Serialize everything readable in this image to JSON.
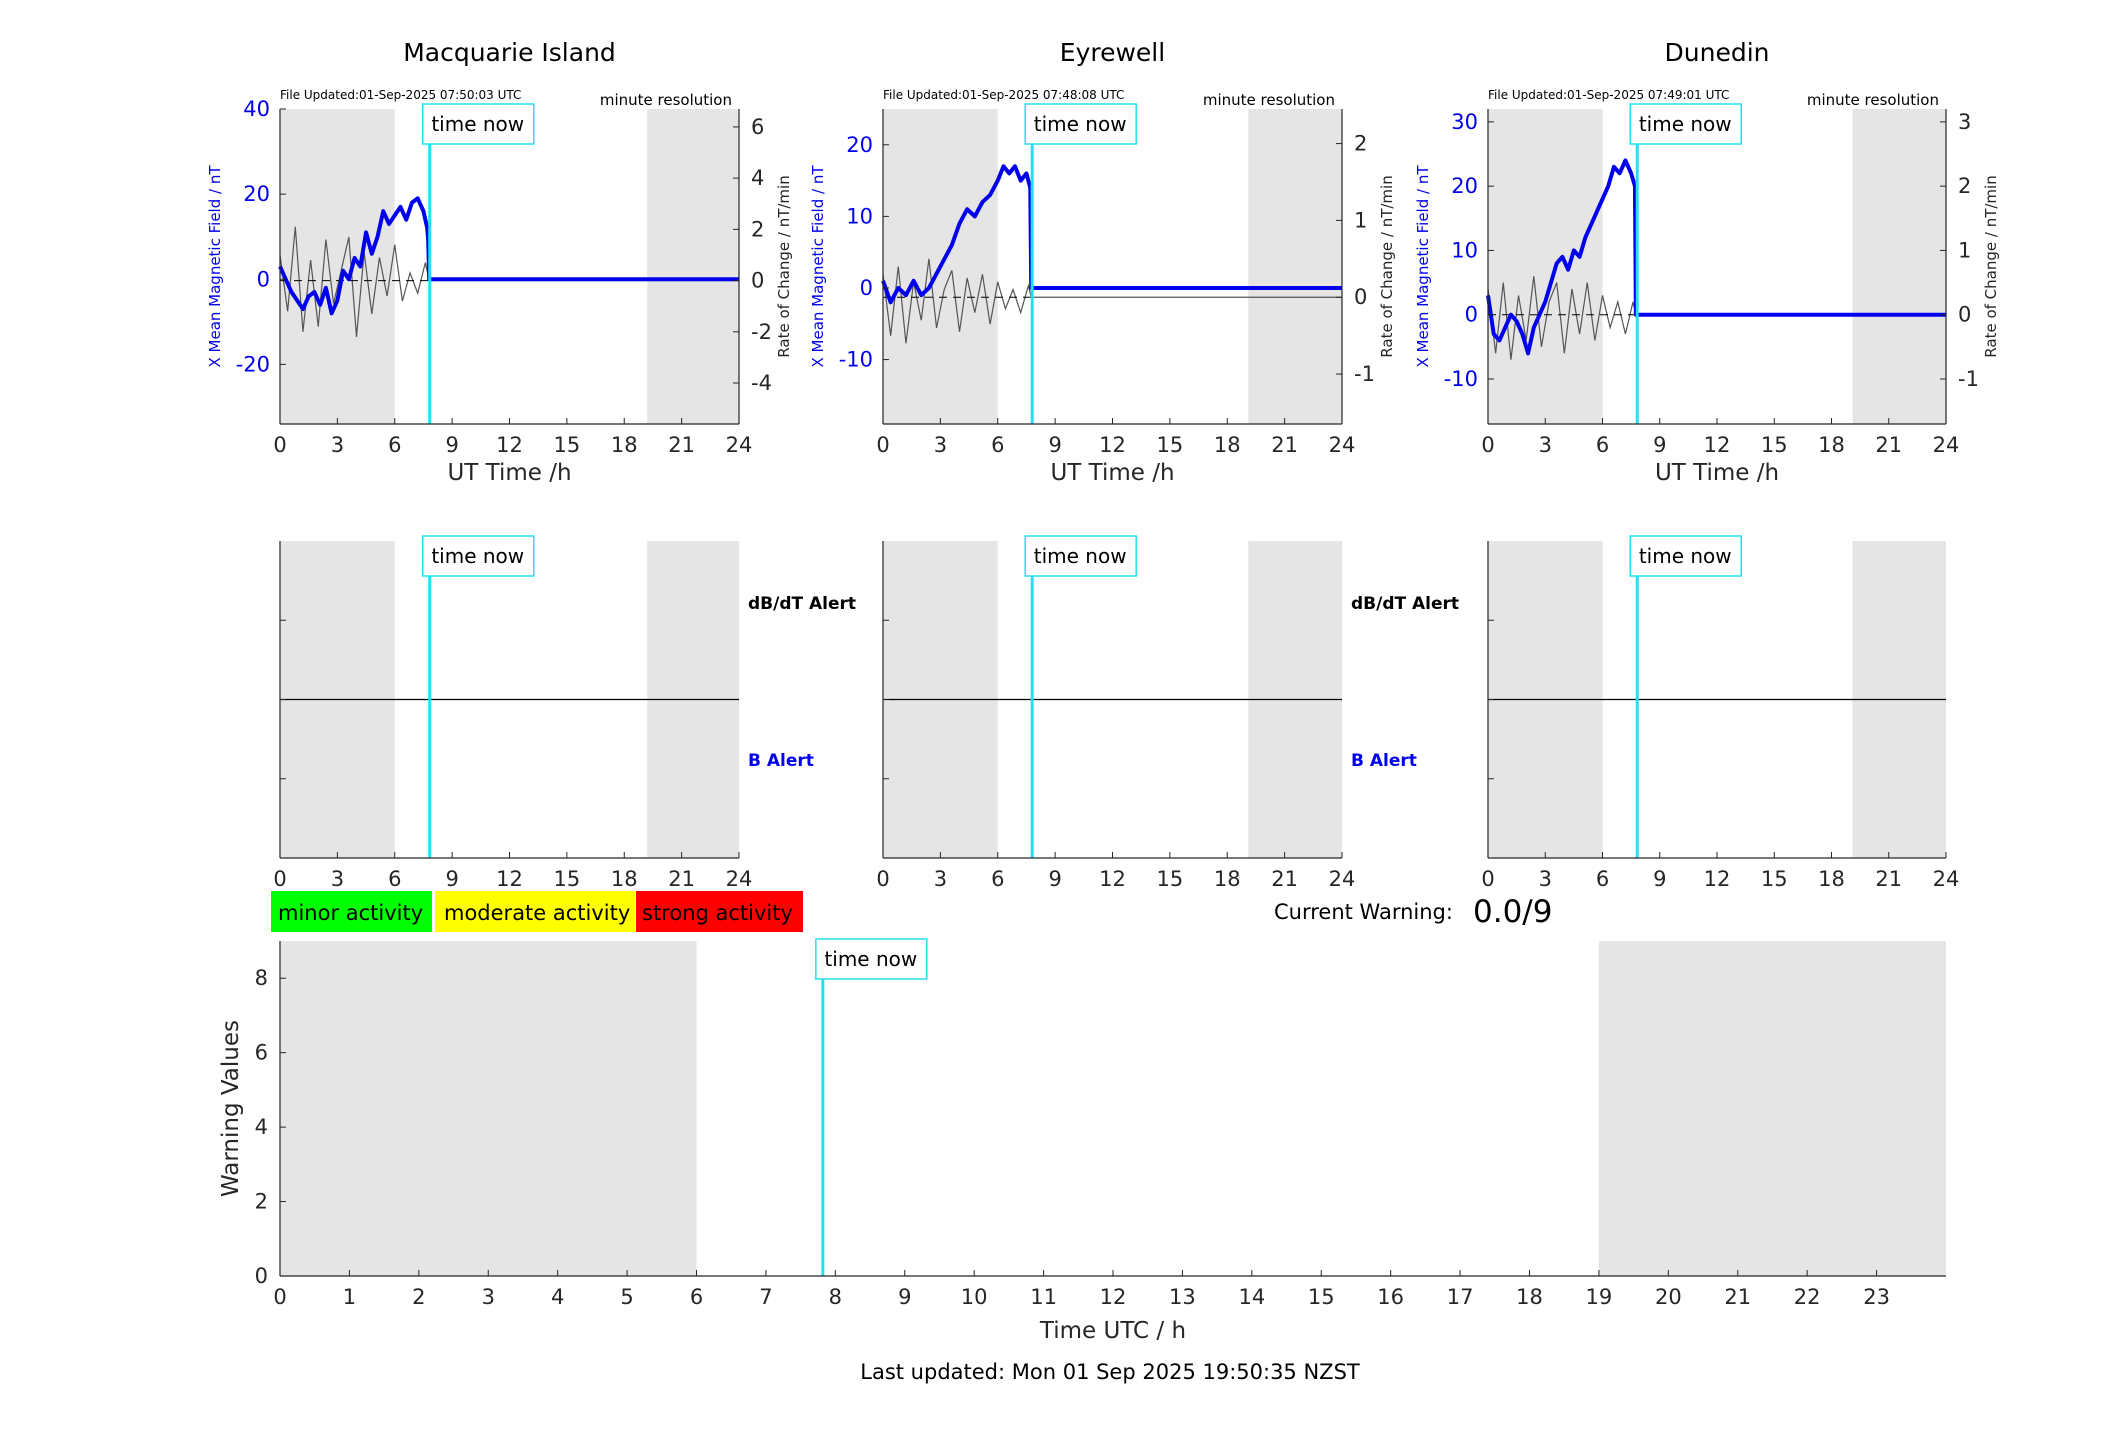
{
  "page": {
    "last_updated": "Last updated: Mon 01 Sep 2025 19:50:35 NZST",
    "current_warning_label": "Current Warning:",
    "current_warning_value": "0.0/9"
  },
  "colors": {
    "night_shade": "#e5e5e5",
    "b_series": "#0000ee",
    "rate_series": "#555555",
    "time_now": "#22e0f0",
    "minor": "#00ff00",
    "moderate": "#ffff00",
    "strong": "#ff0000",
    "axis_blue": "#0000ee",
    "b_alert": "#0000ee",
    "dbdt_alert": "#000000"
  },
  "activity_legend": [
    {
      "label": "minor activity",
      "color": "#00ff00"
    },
    {
      "label": "moderate activity",
      "color": "#ffff00"
    },
    {
      "label": "strong activity",
      "color": "#ff0000"
    }
  ],
  "chart_data": [
    {
      "type": "line",
      "title": "Macquarie Island",
      "file_updated": "File Updated:01-Sep-2025 07:50:03 UTC",
      "resolution": "minute resolution",
      "time_now_label": "time now",
      "time_now_hour": 7.83,
      "night_bands": [
        [
          0,
          6
        ],
        [
          19.2,
          24
        ]
      ],
      "xlabel": "UT Time /h",
      "ylabel": "X Mean Magnetic Field / nT",
      "y2label": "Rate of Change / nT/min",
      "xlim": [
        0,
        24
      ],
      "xticks": [
        0,
        3,
        6,
        9,
        12,
        15,
        18,
        21,
        24
      ],
      "ylim": [
        -34,
        40
      ],
      "yticks": [
        -20,
        0,
        20,
        40
      ],
      "y2lim": [
        -5.6,
        6.7
      ],
      "y2ticks": [
        -4,
        -2,
        0,
        2,
        4,
        6
      ],
      "series": [
        {
          "axis": "left",
          "x": [
            0,
            0.3,
            0.6,
            0.9,
            1.2,
            1.5,
            1.8,
            2.1,
            2.4,
            2.7,
            3.0,
            3.3,
            3.6,
            3.9,
            4.2,
            4.5,
            4.8,
            5.1,
            5.4,
            5.7,
            6.0,
            6.3,
            6.6,
            6.9,
            7.2,
            7.5,
            7.7,
            7.75,
            7.8,
            8,
            24
          ],
          "y": [
            3,
            0,
            -3,
            -5,
            -7,
            -4,
            -3,
            -6,
            -2,
            -8,
            -5,
            2,
            0,
            5,
            3,
            11,
            6,
            10,
            16,
            13,
            15,
            17,
            14,
            18,
            19,
            16,
            12,
            9,
            0,
            0,
            0
          ]
        },
        {
          "axis": "right",
          "x": [
            0,
            0.4,
            0.8,
            1.2,
            1.6,
            2.0,
            2.4,
            2.8,
            3.2,
            3.6,
            4.0,
            4.4,
            4.8,
            5.2,
            5.6,
            6.0,
            6.4,
            6.8,
            7.2,
            7.6,
            7.8,
            8,
            24
          ],
          "y": [
            1.0,
            -1.2,
            2.1,
            -2.0,
            0.8,
            -1.8,
            1.6,
            -0.9,
            0.4,
            1.7,
            -2.2,
            1.1,
            -1.3,
            0.9,
            -0.6,
            1.4,
            -0.8,
            0.3,
            -0.5,
            0.7,
            0,
            0,
            0
          ]
        }
      ]
    },
    {
      "type": "line",
      "title": "Eyrewell",
      "file_updated": "File Updated:01-Sep-2025 07:48:08 UTC",
      "resolution": "minute resolution",
      "time_now_label": "time now",
      "time_now_hour": 7.8,
      "night_bands": [
        [
          0,
          6
        ],
        [
          19.1,
          24
        ]
      ],
      "xlabel": "UT Time /h",
      "ylabel": "X Mean Magnetic Field / nT",
      "y2label": "Rate of Change / nT/min",
      "xlim": [
        0,
        24
      ],
      "xticks": [
        0,
        3,
        6,
        9,
        12,
        15,
        18,
        21,
        24
      ],
      "ylim": [
        -19,
        25
      ],
      "yticks": [
        -10,
        0,
        10,
        20
      ],
      "y2lim": [
        -1.65,
        2.45
      ],
      "y2ticks": [
        -1,
        0,
        1,
        2
      ],
      "series": [
        {
          "axis": "left",
          "x": [
            0,
            0.4,
            0.8,
            1.2,
            1.6,
            2.0,
            2.4,
            2.8,
            3.2,
            3.6,
            4.0,
            4.4,
            4.8,
            5.2,
            5.6,
            6.0,
            6.3,
            6.6,
            6.9,
            7.2,
            7.5,
            7.7,
            7.75,
            8,
            24
          ],
          "y": [
            1,
            -2,
            0,
            -1,
            1,
            -1,
            0,
            2,
            4,
            6,
            9,
            11,
            10,
            12,
            13,
            15,
            17,
            16,
            17,
            15,
            16,
            14,
            0,
            0,
            0
          ]
        },
        {
          "axis": "right",
          "x": [
            0,
            0.4,
            0.8,
            1.2,
            1.6,
            2.0,
            2.4,
            2.8,
            3.2,
            3.6,
            4.0,
            4.4,
            4.8,
            5.2,
            5.6,
            6.0,
            6.4,
            6.8,
            7.2,
            7.6,
            7.75,
            8,
            24
          ],
          "y": [
            0.3,
            -0.5,
            0.4,
            -0.6,
            0.2,
            -0.3,
            0.5,
            -0.4,
            0.1,
            0.35,
            -0.45,
            0.25,
            -0.2,
            0.3,
            -0.35,
            0.2,
            -0.15,
            0.1,
            -0.2,
            0.15,
            0,
            0,
            0
          ]
        }
      ]
    },
    {
      "type": "line",
      "title": "Dunedin",
      "file_updated": "File Updated:01-Sep-2025 07:49:01 UTC",
      "resolution": "minute resolution",
      "time_now_label": "time now",
      "time_now_hour": 7.82,
      "night_bands": [
        [
          0,
          6
        ],
        [
          19.1,
          24
        ]
      ],
      "xlabel": "UT Time /h",
      "ylabel": "X Mean Magnetic Field / nT",
      "y2label": "Rate of Change / nT/min",
      "xlim": [
        0,
        24
      ],
      "xticks": [
        0,
        3,
        6,
        9,
        12,
        15,
        18,
        21,
        24
      ],
      "ylim": [
        -17,
        32
      ],
      "yticks": [
        -10,
        0,
        10,
        20,
        30
      ],
      "y2lim": [
        -1.7,
        3.2
      ],
      "y2ticks": [
        -1,
        0,
        1,
        2,
        3
      ],
      "series": [
        {
          "axis": "left",
          "x": [
            0,
            0.3,
            0.6,
            0.9,
            1.2,
            1.5,
            1.8,
            2.1,
            2.4,
            2.7,
            3.0,
            3.3,
            3.6,
            3.9,
            4.2,
            4.5,
            4.8,
            5.1,
            5.4,
            5.7,
            6.0,
            6.3,
            6.6,
            6.9,
            7.2,
            7.5,
            7.7,
            7.75,
            8,
            24
          ],
          "y": [
            3,
            -3,
            -4,
            -2,
            0,
            -1,
            -3,
            -6,
            -2,
            0,
            2,
            5,
            8,
            9,
            7,
            10,
            9,
            12,
            14,
            16,
            18,
            20,
            23,
            22,
            24,
            22,
            20,
            0,
            0,
            0
          ]
        },
        {
          "axis": "right",
          "x": [
            0,
            0.4,
            0.8,
            1.2,
            1.6,
            2.0,
            2.4,
            2.8,
            3.2,
            3.6,
            4.0,
            4.4,
            4.8,
            5.2,
            5.6,
            6.0,
            6.4,
            6.8,
            7.2,
            7.6,
            7.75,
            8,
            24
          ],
          "y": [
            0.4,
            -0.6,
            0.5,
            -0.7,
            0.3,
            -0.4,
            0.6,
            -0.5,
            0.2,
            0.5,
            -0.6,
            0.4,
            -0.3,
            0.5,
            -0.4,
            0.3,
            -0.2,
            0.2,
            -0.3,
            0.2,
            0,
            0,
            0
          ]
        }
      ]
    },
    {
      "type": "line",
      "panel": "alert-macquarie",
      "time_now_label": "time now",
      "time_now_hour": 7.83,
      "night_bands": [
        [
          0,
          6
        ],
        [
          19.2,
          24
        ]
      ],
      "xlim": [
        0,
        24
      ],
      "xticks": [
        0,
        3,
        6,
        9,
        12,
        15,
        18,
        21,
        24
      ],
      "upper_label": "dB/dT Alert",
      "lower_label": "B Alert"
    },
    {
      "type": "line",
      "panel": "alert-eyrewell",
      "time_now_label": "time now",
      "time_now_hour": 7.8,
      "night_bands": [
        [
          0,
          6
        ],
        [
          19.1,
          24
        ]
      ],
      "xlim": [
        0,
        24
      ],
      "xticks": [
        0,
        3,
        6,
        9,
        12,
        15,
        18,
        21,
        24
      ],
      "upper_label": "dB/dT Alert",
      "lower_label": "B Alert"
    },
    {
      "type": "line",
      "panel": "alert-dunedin",
      "time_now_label": "time now",
      "time_now_hour": 7.82,
      "night_bands": [
        [
          0,
          6
        ],
        [
          19.1,
          24
        ]
      ],
      "xlim": [
        0,
        24
      ],
      "xticks": [
        0,
        3,
        6,
        9,
        12,
        15,
        18,
        21,
        24
      ]
    },
    {
      "type": "bar",
      "panel": "warning",
      "time_now_label": "time now",
      "time_now_hour": 7.82,
      "night_bands": [
        [
          0,
          6
        ],
        [
          19,
          24
        ]
      ],
      "xlabel": "Time UTC / h",
      "ylabel": "Warning Values",
      "xlim": [
        0,
        24
      ],
      "xticks": [
        0,
        1,
        2,
        3,
        4,
        5,
        6,
        7,
        8,
        9,
        10,
        11,
        12,
        13,
        14,
        15,
        16,
        17,
        18,
        19,
        20,
        21,
        22,
        23
      ],
      "ylim": [
        0,
        9
      ],
      "yticks": [
        0,
        2,
        4,
        6,
        8
      ],
      "values": []
    }
  ]
}
